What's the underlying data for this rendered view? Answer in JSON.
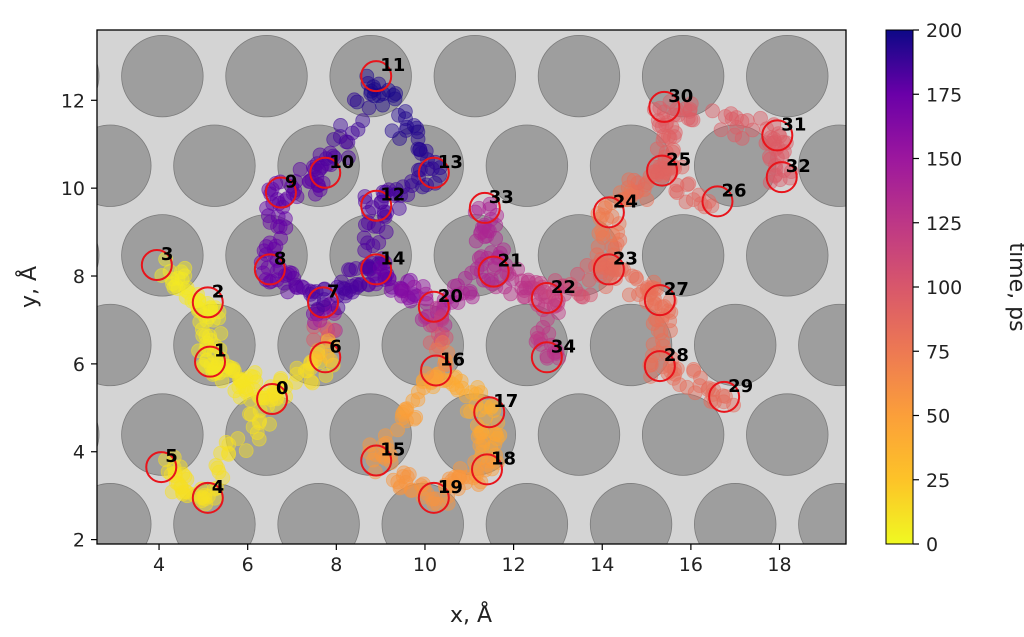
{
  "chart_data": {
    "type": "scatter",
    "title": "",
    "xlabel": "x, Å",
    "ylabel": "y, Å",
    "xlim": [
      2.6,
      19.5
    ],
    "ylim": [
      1.9,
      13.6
    ],
    "xticks": [
      "4",
      "6",
      "8",
      "10",
      "12",
      "14",
      "16",
      "18"
    ],
    "yticks": [
      "2",
      "4",
      "6",
      "8",
      "10",
      "12"
    ],
    "colorbar": {
      "label": "time, ps",
      "range": [
        0,
        200
      ],
      "ticks": [
        "0",
        "25",
        "50",
        "75",
        "100",
        "125",
        "150",
        "175",
        "200"
      ],
      "colormap": "plasma_r"
    },
    "colors": {
      "lattice_circle": "#9e9e9e",
      "background": "#d4d4d4",
      "site_circle": "#e8141b"
    },
    "sites": [
      {
        "label": "0",
        "x": 6.55,
        "y": 5.2,
        "t": 12
      },
      {
        "label": "1",
        "x": 5.15,
        "y": 6.05,
        "t": 10
      },
      {
        "label": "2",
        "x": 5.1,
        "y": 7.4,
        "t": 9
      },
      {
        "label": "3",
        "x": 3.95,
        "y": 8.25,
        "t": 8
      },
      {
        "label": "4",
        "x": 5.1,
        "y": 2.95,
        "t": 14
      },
      {
        "label": "5",
        "x": 4.05,
        "y": 3.65,
        "t": 14
      },
      {
        "label": "6",
        "x": 7.75,
        "y": 6.15,
        "t": 16
      },
      {
        "label": "7",
        "x": 7.7,
        "y": 7.4,
        "t": 185
      },
      {
        "label": "8",
        "x": 6.5,
        "y": 8.15,
        "t": 175
      },
      {
        "label": "9",
        "x": 6.75,
        "y": 9.9,
        "t": 178
      },
      {
        "label": "10",
        "x": 7.75,
        "y": 10.35,
        "t": 180
      },
      {
        "label": "11",
        "x": 8.9,
        "y": 12.55,
        "t": 197
      },
      {
        "label": "12",
        "x": 8.9,
        "y": 9.6,
        "t": 183
      },
      {
        "label": "13",
        "x": 10.2,
        "y": 10.35,
        "t": 192
      },
      {
        "label": "14",
        "x": 8.9,
        "y": 8.15,
        "t": 182
      },
      {
        "label": "15",
        "x": 8.9,
        "y": 3.8,
        "t": 55
      },
      {
        "label": "16",
        "x": 10.25,
        "y": 5.85,
        "t": 45
      },
      {
        "label": "17",
        "x": 11.45,
        "y": 4.9,
        "t": 40
      },
      {
        "label": "18",
        "x": 11.4,
        "y": 3.6,
        "t": 52
      },
      {
        "label": "19",
        "x": 10.2,
        "y": 2.95,
        "t": 58
      },
      {
        "label": "20",
        "x": 10.2,
        "y": 7.3,
        "t": 145
      },
      {
        "label": "21",
        "x": 11.55,
        "y": 8.1,
        "t": 135
      },
      {
        "label": "22",
        "x": 12.75,
        "y": 7.5,
        "t": 120
      },
      {
        "label": "23",
        "x": 14.15,
        "y": 8.15,
        "t": 85
      },
      {
        "label": "24",
        "x": 14.15,
        "y": 9.45,
        "t": 70
      },
      {
        "label": "25",
        "x": 15.35,
        "y": 10.4,
        "t": 90
      },
      {
        "label": "26",
        "x": 16.6,
        "y": 9.7,
        "t": 88
      },
      {
        "label": "27",
        "x": 15.3,
        "y": 7.45,
        "t": 80
      },
      {
        "label": "28",
        "x": 15.3,
        "y": 5.95,
        "t": 82
      },
      {
        "label": "29",
        "x": 16.75,
        "y": 5.25,
        "t": 85
      },
      {
        "label": "30",
        "x": 15.4,
        "y": 11.85,
        "t": 95
      },
      {
        "label": "31",
        "x": 17.95,
        "y": 11.2,
        "t": 95
      },
      {
        "label": "32",
        "x": 18.05,
        "y": 10.25,
        "t": 98
      },
      {
        "label": "33",
        "x": 11.35,
        "y": 9.55,
        "t": 140
      },
      {
        "label": "34",
        "x": 12.75,
        "y": 6.15,
        "t": 128
      }
    ]
  }
}
